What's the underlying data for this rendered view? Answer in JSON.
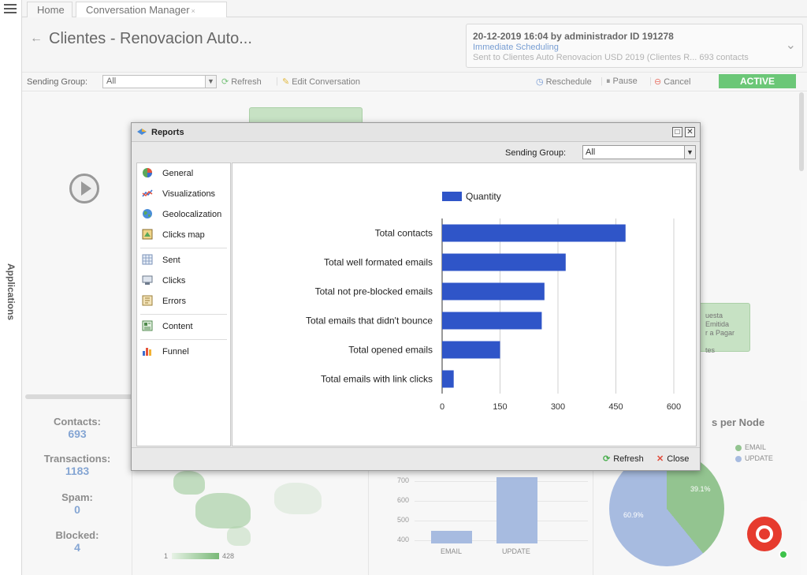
{
  "rail": {
    "label": "Applications"
  },
  "tabs": [
    {
      "label": "Home"
    },
    {
      "label": "Conversation Manager",
      "close": "×"
    }
  ],
  "page": {
    "back": "←",
    "title": "Clientes - Renovacion Auto...",
    "info": {
      "line1": "20-12-2019 16:04 by administrador   ID 191278",
      "line2": "Immediate Scheduling",
      "line3": "Sent to Clientes Auto Renovacion USD 2019 (Clientes R... 693 contacts"
    },
    "toolbar": {
      "sending_group_label": "Sending Group:",
      "sending_group_value": "All",
      "refresh": "Refresh",
      "edit": "Edit Conversation",
      "reschedule": "Reschedule",
      "pause": "Pause",
      "cancel": "Cancel",
      "status": "ACTIVE"
    },
    "canvas_node_text": "uesta Emitida\nr a Pagar\n\ntes",
    "stats": [
      {
        "label": "Contacts:",
        "value": "693"
      },
      {
        "label": "Transactions:",
        "value": "1183"
      },
      {
        "label": "Spam:",
        "value": "0"
      },
      {
        "label": "Blocked:",
        "value": "4"
      }
    ],
    "map_legend": {
      "min": "1",
      "max": "428"
    },
    "bg_bar": {
      "ticks": [
        "700",
        "600",
        "500",
        "400"
      ],
      "categories": [
        "EMAIL",
        "UPDATE"
      ]
    },
    "pie": {
      "title": "s per Node",
      "legend": [
        {
          "label": "EMAIL",
          "color": "#6fb06b"
        },
        {
          "label": "UPDATE",
          "color": "#8aa5d6"
        }
      ],
      "labels": [
        "39.1%",
        "60.9%"
      ]
    }
  },
  "dialog": {
    "title": "Reports",
    "filter_label": "Sending Group:",
    "filter_value": "All",
    "nav": [
      {
        "label": "General",
        "icon": "pie-chart-icon"
      },
      {
        "label": "Visualizations",
        "icon": "line-chart-icon"
      },
      {
        "label": "Geolocalization",
        "icon": "globe-icon"
      },
      {
        "label": "Clicks map",
        "icon": "clicks-map-icon"
      },
      {
        "label": "Sent",
        "icon": "sent-icon"
      },
      {
        "label": "Clicks",
        "icon": "clicks-icon"
      },
      {
        "label": "Errors",
        "icon": "errors-icon"
      },
      {
        "label": "Content",
        "icon": "content-icon"
      },
      {
        "label": "Funnel",
        "icon": "funnel-icon"
      }
    ],
    "footer": {
      "refresh": "Refresh",
      "close": "Close"
    }
  },
  "chart_data": {
    "type": "bar",
    "orientation": "horizontal",
    "categories": [
      "Total contacts",
      "Total well formated emails",
      "Total not pre-blocked emails",
      "Total emails that didn't bounce",
      "Total opened emails",
      "Total emails with link clicks"
    ],
    "series": [
      {
        "name": "Quantity",
        "values": [
          475,
          320,
          265,
          258,
          150,
          30
        ],
        "color": "#2f55c8"
      }
    ],
    "xlim": [
      0,
      600
    ],
    "xticks": [
      "0",
      "150",
      "300",
      "450",
      "600"
    ],
    "grid": true,
    "legend": "top"
  }
}
